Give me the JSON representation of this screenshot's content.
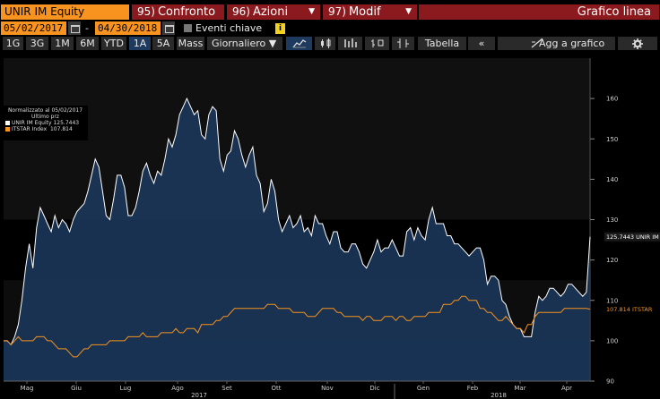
{
  "header": {
    "ticker": "UNIR IM Equity",
    "buttons": [
      {
        "num": "95)",
        "label": "Confronto"
      },
      {
        "num": "96)",
        "label": "Azioni"
      },
      {
        "num": "97)",
        "label": "Modif"
      }
    ],
    "title": "Grafico linea"
  },
  "dates": {
    "start": "05/02/2017",
    "end": "04/30/2018",
    "dash": "-",
    "key_events_label": "Eventi chiave",
    "info": "i"
  },
  "toolbar": {
    "periods": [
      "1G",
      "3G",
      "1M",
      "6M",
      "YTD",
      "1A",
      "5A",
      "Mass"
    ],
    "active_period": "1A",
    "frequency": "Giornaliero ▼",
    "table_label": "Tabella",
    "back_label": "«",
    "add_label": "Agg a grafico"
  },
  "legend": {
    "line1": "Normalizzato al 05/02/2017",
    "line2": "Ultimo prz",
    "series": [
      {
        "name": "UNIR IM Equity",
        "value": "125.7443",
        "color": "#ffffff"
      },
      {
        "name": "ITSTAR Index",
        "value": "107.814",
        "color": "#f7931e"
      }
    ]
  },
  "colors": {
    "accent_orange": "#f7931e",
    "button_red": "#8b1a1f",
    "area_fill": "#1c3a5e",
    "line_white": "#ffffff"
  },
  "chart_data": {
    "type": "area",
    "ylim": [
      90,
      170
    ],
    "yticks": [
      90,
      100,
      110,
      120,
      130,
      140,
      150,
      160
    ],
    "months": [
      "Mag",
      "Giu",
      "Lug",
      "Ago",
      "Set",
      "Ott",
      "Nov",
      "Dic",
      "Gen",
      "Feb",
      "Mar",
      "Apr"
    ],
    "years": [
      "2017",
      "2018"
    ],
    "series": [
      {
        "name": "UNIR IM Equity",
        "label": "125.7443 UNIR IM",
        "color": "#ffffff",
        "values": [
          100,
          100,
          99,
          101,
          104,
          110,
          118,
          124,
          118,
          128,
          133,
          131,
          129,
          127,
          131,
          128,
          130,
          129,
          127,
          130,
          132,
          133,
          134,
          137,
          141,
          145,
          143,
          137,
          131,
          130,
          135,
          141,
          141,
          138,
          131,
          131,
          133,
          137,
          142,
          144,
          141,
          139,
          142,
          141,
          145,
          150,
          148,
          151,
          156,
          158,
          160,
          158,
          156,
          157,
          151,
          150,
          156,
          158,
          157,
          145,
          142,
          146,
          147,
          152,
          150,
          146,
          143,
          146,
          148,
          141,
          139,
          132,
          134,
          140,
          137,
          130,
          127,
          129,
          131,
          128,
          129,
          131,
          127,
          128,
          126,
          131,
          129,
          129,
          126,
          124,
          127,
          127,
          123,
          122,
          122,
          124,
          124,
          122,
          119,
          118,
          120,
          122,
          125,
          122,
          123,
          123,
          125,
          123,
          121,
          121,
          127,
          128,
          125,
          128,
          126,
          125,
          130,
          133,
          129,
          129,
          129,
          126,
          126,
          124,
          124,
          123,
          122,
          121,
          122,
          123,
          123,
          120,
          114,
          116,
          116,
          115,
          110,
          109,
          106,
          104,
          103,
          103,
          101,
          101,
          101,
          107,
          111,
          110,
          111,
          113,
          113,
          112,
          111,
          112,
          114,
          114,
          113,
          112,
          111,
          112,
          125.7443
        ]
      },
      {
        "name": "ITSTAR Index",
        "label": "107.814 ITSTAR",
        "color": "#f7931e",
        "values": [
          100,
          100,
          99,
          100,
          101,
          100,
          100,
          100,
          100,
          101,
          101,
          101,
          100,
          100,
          99,
          98,
          98,
          98,
          97,
          96,
          96,
          97,
          98,
          98,
          99,
          99,
          99,
          99,
          99,
          100,
          100,
          100,
          100,
          100,
          101,
          101,
          101,
          101,
          102,
          101,
          101,
          101,
          101,
          102,
          102,
          102,
          102,
          103,
          102,
          102,
          103,
          103,
          103,
          102,
          104,
          104,
          104,
          104,
          105,
          105,
          106,
          106,
          107,
          108,
          108,
          108,
          108,
          108,
          108,
          108,
          108,
          108,
          109,
          109,
          109,
          108,
          108,
          108,
          108,
          107,
          107,
          107,
          107,
          106,
          106,
          106,
          107,
          108,
          108,
          108,
          108,
          107,
          107,
          106,
          106,
          106,
          106,
          106,
          105,
          106,
          106,
          105,
          105,
          105,
          106,
          106,
          106,
          105,
          106,
          106,
          105,
          105,
          106,
          106,
          106,
          106,
          107,
          107,
          107,
          107,
          109,
          109,
          109,
          110,
          110,
          111,
          111,
          110,
          110,
          110,
          108,
          108,
          107,
          107,
          106,
          105,
          105,
          106,
          105,
          104,
          103,
          103,
          102,
          104,
          104,
          106,
          107,
          107,
          107,
          107,
          107,
          107,
          107,
          108,
          108,
          108,
          108,
          108,
          108,
          108,
          107.814
        ]
      }
    ]
  }
}
